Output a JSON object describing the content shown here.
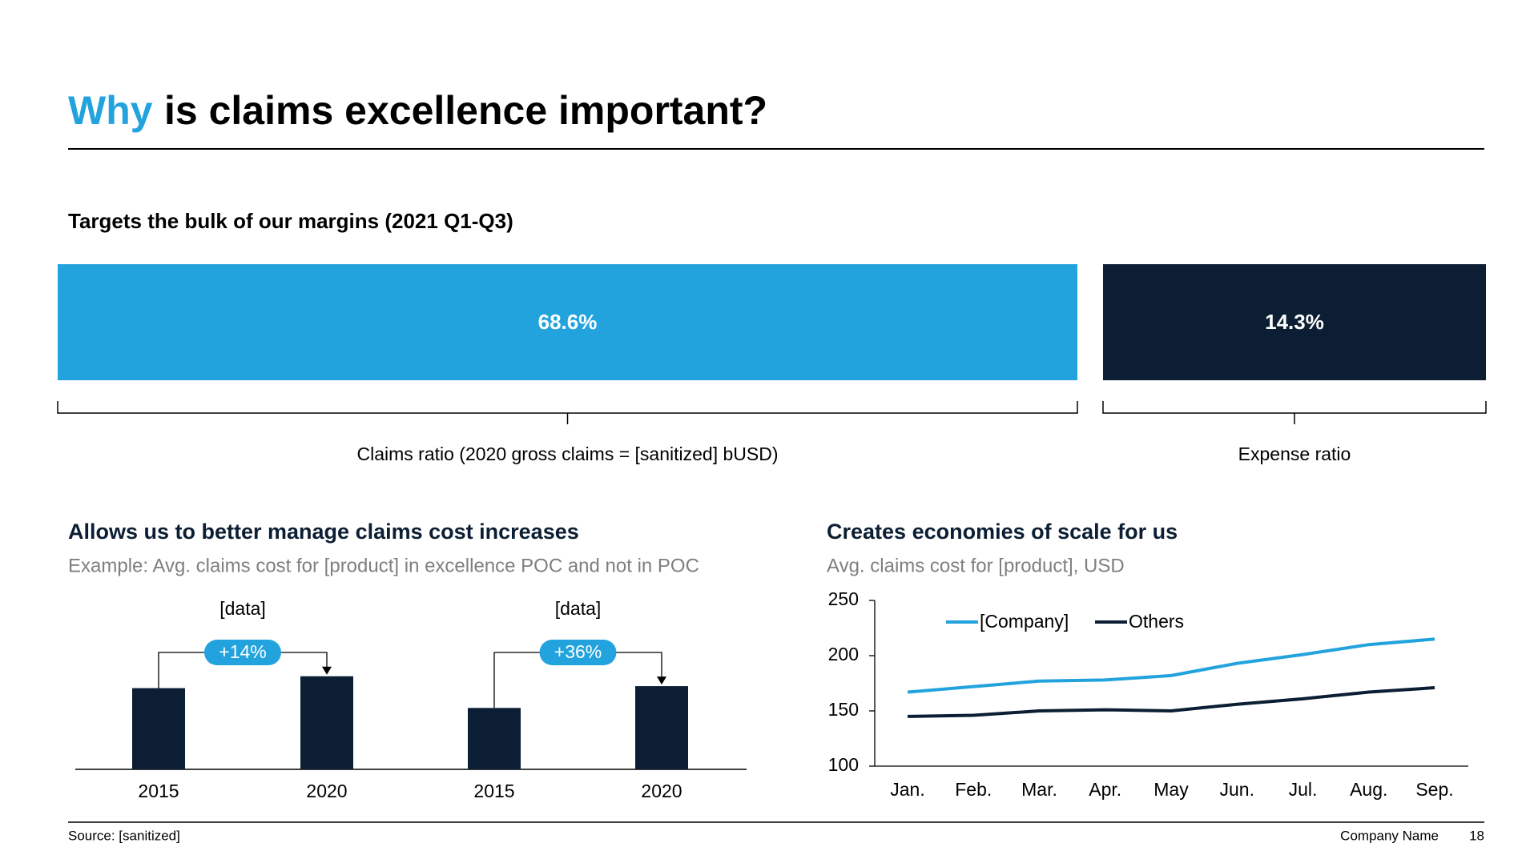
{
  "header": {
    "title_highlight": "Why",
    "title_rest": "is claims excellence important?"
  },
  "chart_data": [
    {
      "type": "block",
      "title": "Targets the bulk of our margins (2021 Q1-Q3)",
      "categories": [
        "Claims ratio (2020 gross claims = [sanitized] bUSD)",
        "Expense ratio"
      ],
      "values": [
        68.6,
        14.3
      ],
      "value_labels": [
        "68.6%",
        "14.3%"
      ],
      "colors": [
        "#23a3de",
        "#0b1e33"
      ]
    },
    {
      "type": "bar",
      "title": "Allows us to better manage claims cost increases",
      "subtitle": "Example: Avg. claims cost for [product] in excellence POC and not in POC",
      "color": "#0b1e33",
      "bubble_color": "#23a3de",
      "groups": [
        {
          "label": "[data]",
          "change": "+14%",
          "categories": [
            "2015",
            "2020"
          ],
          "values": [
            82,
            94
          ]
        },
        {
          "label": "[data]",
          "change": "+36%",
          "categories": [
            "2015",
            "2020"
          ],
          "values": [
            62,
            84
          ]
        }
      ]
    },
    {
      "type": "line",
      "title": "Creates economies of scale for us",
      "subtitle": "Avg. claims cost for [product], USD",
      "categories": [
        "Jan.",
        "Feb.",
        "Mar.",
        "Apr.",
        "May",
        "Jun.",
        "Jul.",
        "Aug.",
        "Sep."
      ],
      "series": [
        {
          "name": "[Company]",
          "color": "#23a3de",
          "values": [
            167,
            172,
            177,
            178,
            182,
            193,
            201,
            210,
            215
          ]
        },
        {
          "name": "Others",
          "color": "#0b1e33",
          "values": [
            145,
            146,
            150,
            151,
            150,
            156,
            161,
            167,
            171
          ]
        }
      ],
      "ylim": [
        100,
        250
      ],
      "yticks": [
        100,
        150,
        200,
        250
      ]
    }
  ],
  "footer": {
    "source": "Source: [sanitized]",
    "company": "Company Name",
    "page": "18"
  }
}
